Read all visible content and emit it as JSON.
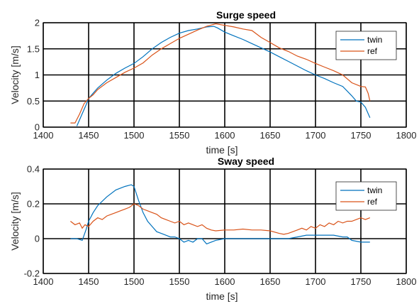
{
  "chart_data": [
    {
      "type": "line",
      "title": "Surge speed",
      "xlabel": "time [s]",
      "ylabel": "Velocity [m/s]",
      "xlim": [
        1400,
        1800
      ],
      "ylim": [
        0,
        2
      ],
      "xticks": [
        1400,
        1450,
        1500,
        1550,
        1600,
        1650,
        1700,
        1750,
        1800
      ],
      "yticks": [
        0,
        0.5,
        1,
        1.5,
        2
      ],
      "grid": true,
      "legend_position": "top-right",
      "series": [
        {
          "name": "twin",
          "color": "#0072BD",
          "x": [
            1437,
            1442,
            1447,
            1450,
            1455,
            1460,
            1470,
            1480,
            1490,
            1500,
            1510,
            1520,
            1530,
            1540,
            1550,
            1560,
            1570,
            1580,
            1588,
            1592,
            1600,
            1610,
            1620,
            1630,
            1640,
            1650,
            1660,
            1670,
            1680,
            1690,
            1700,
            1710,
            1720,
            1730,
            1740,
            1745,
            1750,
            1755,
            1760
          ],
          "y": [
            0.02,
            0.22,
            0.42,
            0.55,
            0.65,
            0.75,
            0.9,
            1.03,
            1.13,
            1.22,
            1.35,
            1.5,
            1.62,
            1.72,
            1.8,
            1.85,
            1.88,
            1.92,
            1.93,
            1.9,
            1.82,
            1.75,
            1.68,
            1.6,
            1.52,
            1.44,
            1.35,
            1.26,
            1.17,
            1.08,
            1.0,
            0.93,
            0.85,
            0.78,
            0.6,
            0.5,
            0.48,
            0.38,
            0.18
          ]
        },
        {
          "name": "ref",
          "color": "#D95319",
          "x": [
            1430,
            1435,
            1440,
            1445,
            1450,
            1455,
            1460,
            1470,
            1480,
            1490,
            1500,
            1510,
            1520,
            1530,
            1540,
            1550,
            1560,
            1570,
            1580,
            1590,
            1600,
            1610,
            1620,
            1630,
            1640,
            1650,
            1660,
            1670,
            1680,
            1690,
            1700,
            1710,
            1720,
            1730,
            1740,
            1750,
            1755,
            1758,
            1760
          ],
          "y": [
            0.08,
            0.08,
            0.25,
            0.45,
            0.55,
            0.62,
            0.72,
            0.85,
            0.95,
            1.05,
            1.13,
            1.23,
            1.38,
            1.5,
            1.6,
            1.7,
            1.78,
            1.86,
            1.93,
            1.98,
            1.95,
            1.92,
            1.88,
            1.85,
            1.72,
            1.62,
            1.52,
            1.45,
            1.36,
            1.3,
            1.22,
            1.15,
            1.08,
            1.0,
            0.85,
            0.78,
            0.77,
            0.65,
            0.5
          ]
        }
      ]
    },
    {
      "type": "line",
      "title": "Sway speed",
      "xlabel": "time [s]",
      "ylabel": "Velocity [m/s]",
      "xlim": [
        1400,
        1800
      ],
      "ylim": [
        -0.2,
        0.4
      ],
      "xticks": [
        1400,
        1450,
        1500,
        1550,
        1600,
        1650,
        1700,
        1750,
        1800
      ],
      "yticks": [
        -0.2,
        0,
        0.2,
        0.4
      ],
      "grid": true,
      "legend_position": "top-right",
      "series": [
        {
          "name": "twin",
          "color": "#0072BD",
          "x": [
            1430,
            1437,
            1443,
            1447,
            1450,
            1455,
            1460,
            1470,
            1480,
            1490,
            1497,
            1500,
            1505,
            1510,
            1515,
            1520,
            1525,
            1530,
            1535,
            1540,
            1545,
            1550,
            1555,
            1560,
            1565,
            1570,
            1575,
            1580,
            1585,
            1590,
            1600,
            1620,
            1640,
            1660,
            1670,
            1680,
            1690,
            1700,
            1710,
            1720,
            1730,
            1735,
            1740,
            1750,
            1760
          ],
          "y": [
            0.0,
            0.0,
            -0.01,
            0.05,
            0.1,
            0.15,
            0.19,
            0.24,
            0.28,
            0.3,
            0.31,
            0.3,
            0.22,
            0.15,
            0.1,
            0.07,
            0.04,
            0.03,
            0.02,
            0.01,
            0.01,
            0.0,
            -0.02,
            -0.01,
            -0.02,
            0.0,
            0.0,
            -0.03,
            -0.02,
            -0.01,
            0.0,
            0.0,
            0.0,
            0.0,
            0.0,
            0.01,
            0.02,
            0.02,
            0.02,
            0.02,
            0.01,
            0.01,
            -0.01,
            -0.02,
            -0.02
          ]
        },
        {
          "name": "ref",
          "color": "#D95319",
          "x": [
            1430,
            1435,
            1440,
            1443,
            1446,
            1450,
            1455,
            1460,
            1465,
            1470,
            1475,
            1480,
            1485,
            1490,
            1495,
            1500,
            1505,
            1510,
            1515,
            1520,
            1525,
            1530,
            1535,
            1540,
            1545,
            1550,
            1555,
            1560,
            1565,
            1570,
            1575,
            1580,
            1585,
            1590,
            1600,
            1610,
            1620,
            1630,
            1640,
            1650,
            1660,
            1665,
            1670,
            1675,
            1680,
            1685,
            1690,
            1695,
            1700,
            1705,
            1710,
            1715,
            1720,
            1725,
            1730,
            1735,
            1740,
            1745,
            1750,
            1755,
            1760
          ],
          "y": [
            0.1,
            0.08,
            0.09,
            0.06,
            0.08,
            0.07,
            0.1,
            0.12,
            0.11,
            0.13,
            0.14,
            0.15,
            0.16,
            0.17,
            0.18,
            0.2,
            0.19,
            0.17,
            0.16,
            0.15,
            0.14,
            0.12,
            0.11,
            0.1,
            0.09,
            0.1,
            0.08,
            0.09,
            0.08,
            0.07,
            0.08,
            0.06,
            0.05,
            0.045,
            0.05,
            0.05,
            0.055,
            0.05,
            0.05,
            0.045,
            0.03,
            0.025,
            0.03,
            0.04,
            0.05,
            0.06,
            0.05,
            0.07,
            0.06,
            0.08,
            0.07,
            0.09,
            0.08,
            0.1,
            0.09,
            0.1,
            0.1,
            0.11,
            0.12,
            0.11,
            0.12
          ]
        }
      ]
    }
  ]
}
